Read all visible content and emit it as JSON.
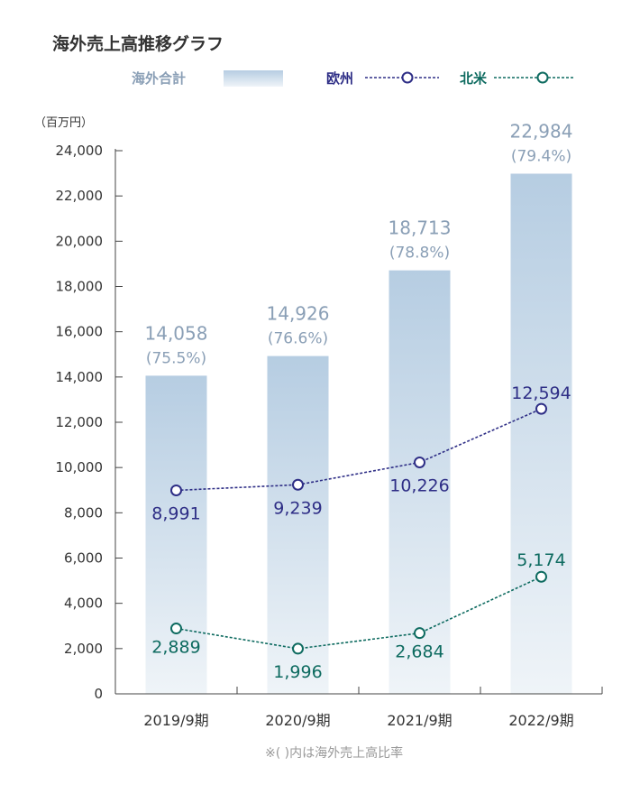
{
  "title": "海外売上高推移グラフ",
  "unit_label": "（百万円）",
  "note": "※( )内は海外売上高比率",
  "legend": {
    "total": "海外合計",
    "europe": "欧州",
    "north_america": "北米"
  },
  "colors": {
    "bar_top": "#b6cde2",
    "bar_bottom": "#eff4f8",
    "bar_label": "#8a9fb6",
    "europe": "#2e2e86",
    "north_america": "#0e6b60",
    "axis": "#444444",
    "text": "#333333"
  },
  "chart_data": {
    "type": "bar",
    "categories": [
      "2019/9期",
      "2020/9期",
      "2021/9期",
      "2022/9期"
    ],
    "ylim": [
      0,
      24000
    ],
    "yticks": [
      0,
      2000,
      4000,
      6000,
      8000,
      10000,
      12000,
      14000,
      16000,
      18000,
      20000,
      22000,
      24000
    ],
    "ytick_labels": [
      "0",
      "2,000",
      "4,000",
      "6,000",
      "8,000",
      "10,000",
      "12,000",
      "14,000",
      "16,000",
      "18,000",
      "20,000",
      "22,000",
      "24,000"
    ],
    "series": [
      {
        "name": "海外合計",
        "kind": "bar",
        "values": [
          14058,
          14926,
          18713,
          22984
        ],
        "labels": [
          "14,058",
          "14,926",
          "18,713",
          "22,984"
        ],
        "ratio_labels": [
          "(75.5%)",
          "(76.6%)",
          "(78.8%)",
          "(79.4%)"
        ]
      },
      {
        "name": "欧州",
        "kind": "line",
        "values": [
          8991,
          9239,
          10226,
          12594
        ],
        "labels": [
          "8,991",
          "9,239",
          "10,226",
          "12,594"
        ]
      },
      {
        "name": "北米",
        "kind": "line",
        "values": [
          2889,
          1996,
          2684,
          5174
        ],
        "labels": [
          "2,889",
          "1,996",
          "2,684",
          "5,174"
        ]
      }
    ]
  }
}
